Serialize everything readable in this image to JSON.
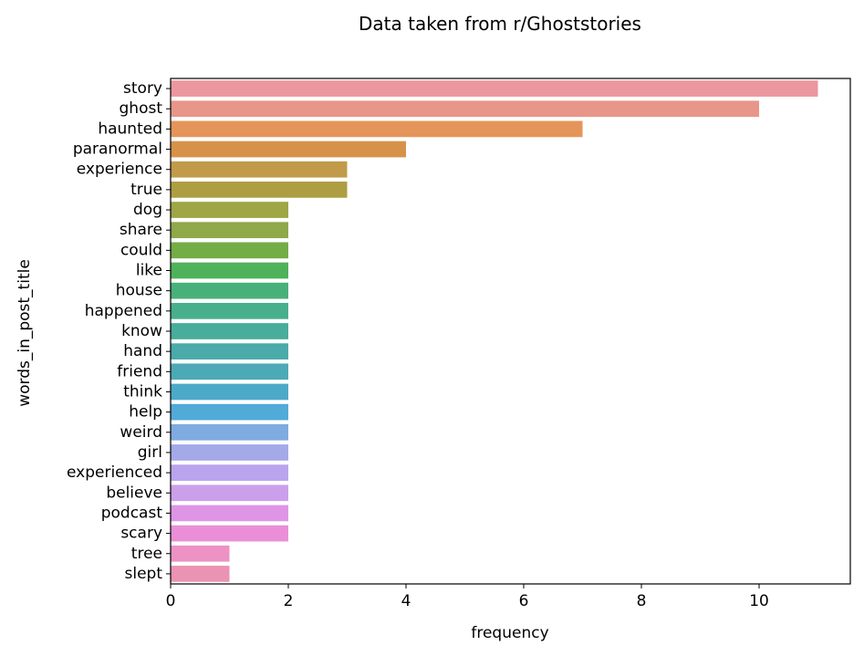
{
  "chart_data": {
    "type": "bar",
    "orientation": "horizontal",
    "title": "Data taken from r/Ghoststories",
    "xlabel": "frequency",
    "ylabel": "words_in_post_title",
    "xlim": [
      0,
      11.55
    ],
    "xticks": [
      0,
      2,
      4,
      6,
      8,
      10
    ],
    "grid": false,
    "categories": [
      "story",
      "ghost",
      "haunted",
      "paranormal",
      "experience",
      "true",
      "dog",
      "share",
      "could",
      "like",
      "house",
      "happened",
      "know",
      "hand",
      "friend",
      "think",
      "help",
      "weird",
      "girl",
      "experienced",
      "believe",
      "podcast",
      "scary",
      "tree",
      "slept"
    ],
    "values": [
      11,
      10,
      7,
      4,
      3,
      3,
      2,
      2,
      2,
      2,
      2,
      2,
      2,
      2,
      2,
      2,
      2,
      2,
      2,
      2,
      2,
      2,
      2,
      1,
      1
    ],
    "colors": [
      "#ec97a0",
      "#e8968a",
      "#e59559",
      "#d7924a",
      "#c19a4a",
      "#ae9e42",
      "#9ea645",
      "#8fa84a",
      "#73ad46",
      "#4fb25a",
      "#48b17a",
      "#48af8c",
      "#48ad9a",
      "#4aabaa",
      "#4caab6",
      "#4ca9c8",
      "#52aad8",
      "#7fabe1",
      "#a4a9e8",
      "#baa4ee",
      "#cc9fea",
      "#df95e5",
      "#ea8fd7",
      "#ec92c5",
      "#eb93b3"
    ]
  }
}
